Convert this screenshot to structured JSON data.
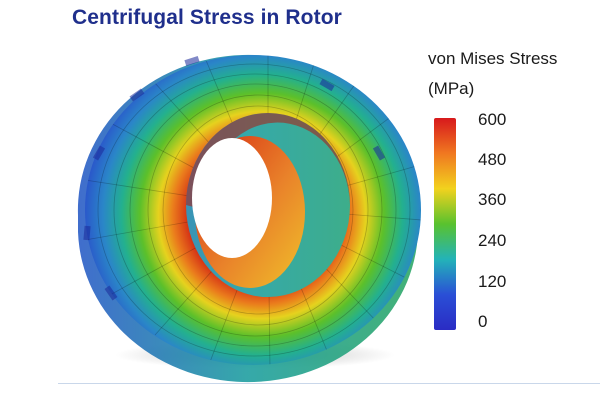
{
  "title": "Centrifugal Stress in Rotor",
  "legend": {
    "title_line1": "von Mises Stress",
    "title_line2": "(MPa)",
    "ticks": [
      "600",
      "480",
      "360",
      "240",
      "120",
      "0"
    ],
    "colors": [
      "#d7191c",
      "#f07820",
      "#f2d21e",
      "#59c22e",
      "#23b3b8",
      "#2a4fd6",
      "#2a2cc4"
    ]
  }
}
